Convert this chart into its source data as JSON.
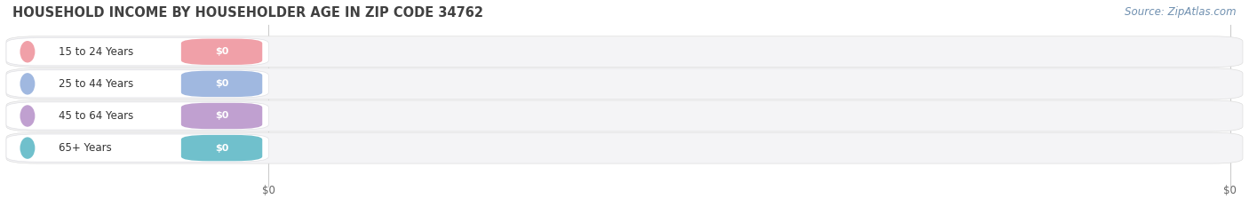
{
  "title": "HOUSEHOLD INCOME BY HOUSEHOLDER AGE IN ZIP CODE 34762",
  "source": "Source: ZipAtlas.com",
  "categories": [
    "15 to 24 Years",
    "25 to 44 Years",
    "45 to 64 Years",
    "65+ Years"
  ],
  "values": [
    0,
    0,
    0,
    0
  ],
  "bar_colors": [
    "#f0a0a8",
    "#a0b8e0",
    "#c0a0d0",
    "#70c0cc"
  ],
  "row_bg_color": "#f0f0f2",
  "background_color": "#ffffff",
  "title_fontsize": 10.5,
  "source_fontsize": 8.5,
  "figsize": [
    14.06,
    2.33
  ],
  "dpi": 100
}
